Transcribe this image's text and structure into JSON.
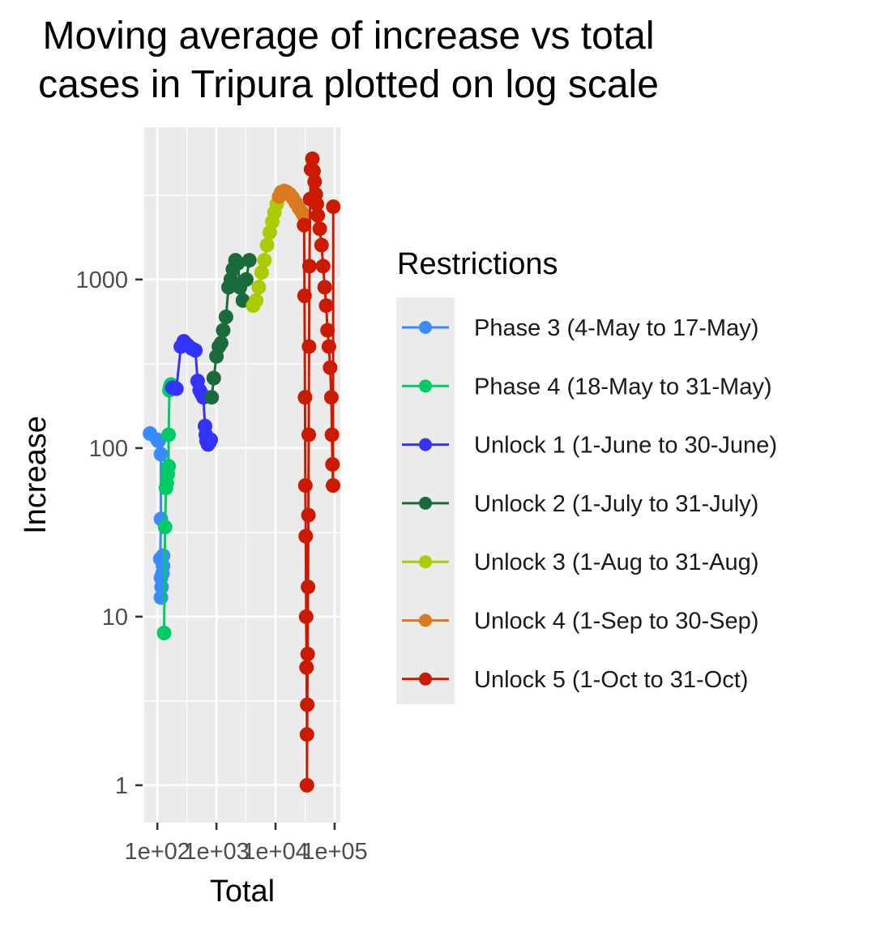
{
  "chart_data": {
    "type": "line",
    "title_lines": [
      "Moving average of increase vs total",
      "cases in Tripura plotted on log scale"
    ],
    "xlabel": "Total",
    "ylabel": "Increase",
    "x_scale": "log10",
    "y_scale": "log10",
    "xlim": [
      60,
      125000
    ],
    "ylim": [
      0.6,
      8000
    ],
    "x_ticks": [
      {
        "value": 100,
        "label": "1e+02"
      },
      {
        "value": 1000,
        "label": "1e+03"
      },
      {
        "value": 10000,
        "label": "1e+04"
      },
      {
        "value": 100000,
        "label": "1e+05"
      }
    ],
    "y_ticks": [
      {
        "value": 1,
        "label": "1"
      },
      {
        "value": 10,
        "label": "10"
      },
      {
        "value": 100,
        "label": "100"
      },
      {
        "value": 1000,
        "label": "1000"
      }
    ],
    "grid": true,
    "legend": {
      "title": "Restrictions",
      "position": "right"
    },
    "series": [
      {
        "name": "Phase 3 (4-May to 17-May)",
        "color": "#3a8bff",
        "points": [
          [
            75,
            122
          ],
          [
            100,
            112
          ],
          [
            105,
            110
          ],
          [
            115,
            92
          ],
          [
            115,
            38
          ],
          [
            112,
            22
          ],
          [
            115,
            17
          ],
          [
            115,
            13
          ],
          [
            118,
            15
          ],
          [
            122,
            18
          ],
          [
            125,
            20
          ],
          [
            125,
            23
          ]
        ]
      },
      {
        "name": "Phase 4 (18-May to 31-May)",
        "color": "#00cc66",
        "points": [
          [
            130,
            8
          ],
          [
            135,
            34
          ],
          [
            140,
            58
          ],
          [
            145,
            62
          ],
          [
            150,
            70
          ],
          [
            155,
            78
          ],
          [
            155,
            120
          ],
          [
            160,
            220
          ],
          [
            165,
            230
          ],
          [
            170,
            238
          ]
        ]
      },
      {
        "name": "Unlock 1 (1-June to 30-June)",
        "color": "#3333ff",
        "points": [
          [
            180,
            228
          ],
          [
            210,
            225
          ],
          [
            250,
            400
          ],
          [
            280,
            430
          ],
          [
            320,
            410
          ],
          [
            380,
            390
          ],
          [
            440,
            380
          ],
          [
            480,
            250
          ],
          [
            520,
            220
          ],
          [
            560,
            210
          ],
          [
            600,
            200
          ],
          [
            640,
            135
          ],
          [
            660,
            120
          ],
          [
            680,
            110
          ],
          [
            720,
            105
          ],
          [
            760,
            108
          ],
          [
            800,
            112
          ]
        ]
      },
      {
        "name": "Unlock 2 (1-July to 31-July)",
        "color": "#1a6b3c",
        "points": [
          [
            830,
            200
          ],
          [
            900,
            260
          ],
          [
            1000,
            350
          ],
          [
            1100,
            400
          ],
          [
            1200,
            420
          ],
          [
            1300,
            500
          ],
          [
            1450,
            600
          ],
          [
            1600,
            900
          ],
          [
            1750,
            1000
          ],
          [
            1900,
            1150
          ],
          [
            2100,
            1300
          ],
          [
            2300,
            1250
          ],
          [
            2500,
            900
          ],
          [
            2800,
            750
          ],
          [
            3200,
            1000
          ],
          [
            3600,
            1300
          ]
        ]
      },
      {
        "name": "Unlock 3 (1-Aug to 31-Aug)",
        "color": "#aacc00",
        "points": [
          [
            4200,
            700
          ],
          [
            4700,
            750
          ],
          [
            5200,
            900
          ],
          [
            5800,
            1100
          ],
          [
            6500,
            1300
          ],
          [
            7200,
            1600
          ],
          [
            8000,
            1900
          ],
          [
            8800,
            2200
          ],
          [
            9600,
            2500
          ],
          [
            10500,
            2800
          ]
        ]
      },
      {
        "name": "Unlock 4 (1-Sep to 30-Sep)",
        "color": "#d97a1f",
        "points": [
          [
            11500,
            3100
          ],
          [
            12500,
            3300
          ],
          [
            14000,
            3350
          ],
          [
            15500,
            3300
          ],
          [
            17500,
            3200
          ],
          [
            19500,
            3050
          ],
          [
            22000,
            2850
          ],
          [
            25000,
            2650
          ],
          [
            28000,
            2500
          ],
          [
            30000,
            2400
          ]
        ]
      },
      {
        "name": "Unlock 5 (1-Oct to 31-Oct)",
        "color": "#cc1a00",
        "points": [
          [
            30500,
            2100
          ],
          [
            31000,
            800
          ],
          [
            31500,
            200
          ],
          [
            32000,
            60
          ],
          [
            32500,
            30
          ],
          [
            33000,
            10
          ],
          [
            33500,
            5
          ],
          [
            34000,
            2
          ],
          [
            34000,
            1
          ],
          [
            34500,
            3
          ],
          [
            35000,
            6
          ],
          [
            35500,
            15
          ],
          [
            36000,
            40
          ],
          [
            36500,
            120
          ],
          [
            37000,
            400
          ],
          [
            37500,
            1200
          ],
          [
            38500,
            3000
          ],
          [
            40000,
            4500
          ],
          [
            42000,
            5200
          ],
          [
            44000,
            4400
          ],
          [
            46000,
            3800
          ],
          [
            48000,
            3200
          ],
          [
            50000,
            2800
          ],
          [
            52000,
            2400
          ],
          [
            56000,
            2000
          ],
          [
            60000,
            1600
          ],
          [
            64000,
            1200
          ],
          [
            68000,
            900
          ],
          [
            72000,
            700
          ],
          [
            76000,
            500
          ],
          [
            80000,
            400
          ],
          [
            84000,
            300
          ],
          [
            88000,
            200
          ],
          [
            90000,
            120
          ],
          [
            92000,
            80
          ],
          [
            94000,
            60
          ],
          [
            95000,
            2700
          ]
        ]
      }
    ]
  }
}
